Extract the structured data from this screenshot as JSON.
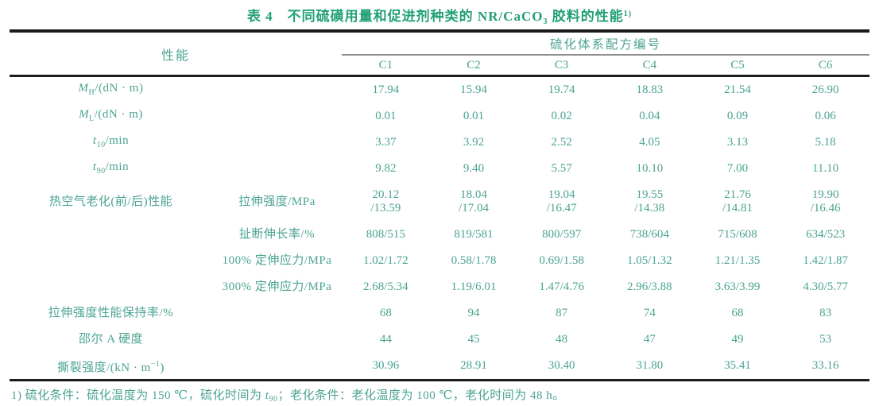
{
  "colors": {
    "text": "#4aa392",
    "title": "#21a173",
    "rule": "#1b1b1b",
    "subrule": "#8f8f8f",
    "background": "#ffffff"
  },
  "title": {
    "segments": [
      {
        "t": "表 4　不同硫磺用量和促进剂种类的 NR/CaCO",
        "s": "n"
      },
      {
        "t": "3",
        "s": "sub"
      },
      {
        "t": " 胶料的性能",
        "s": "n"
      },
      {
        "t": "1)",
        "s": "sup"
      }
    ]
  },
  "table": {
    "header": {
      "property": "性能",
      "group": "硫化体系配方编号",
      "columns": [
        "C1",
        "C2",
        "C3",
        "C4",
        "C5",
        "C6"
      ]
    },
    "rows": [
      {
        "group": "",
        "cell": "A",
        "label": [
          {
            "t": "M",
            "s": "i"
          },
          {
            "t": "H",
            "s": "sub"
          },
          {
            "t": "/(dN · m)",
            "s": "n"
          }
        ],
        "values": [
          "17.94",
          "15.94",
          "19.74",
          "18.83",
          "21.54",
          "26.90"
        ]
      },
      {
        "group": "",
        "cell": "A",
        "label": [
          {
            "t": "M",
            "s": "i"
          },
          {
            "t": "L",
            "s": "sub"
          },
          {
            "t": "/(dN · m)",
            "s": "n"
          }
        ],
        "values": [
          "0.01",
          "0.01",
          "0.02",
          "0.04",
          "0.09",
          "0.06"
        ]
      },
      {
        "group": "",
        "cell": "A",
        "label": [
          {
            "t": "t",
            "s": "i"
          },
          {
            "t": "10",
            "s": "sub"
          },
          {
            "t": "/min",
            "s": "n"
          }
        ],
        "values": [
          "3.37",
          "3.92",
          "2.52",
          "4.05",
          "3.13",
          "5.18"
        ]
      },
      {
        "group": "",
        "cell": "A",
        "label": [
          {
            "t": "t",
            "s": "i"
          },
          {
            "t": "90",
            "s": "sub"
          },
          {
            "t": "/min",
            "s": "n"
          }
        ],
        "values": [
          "9.82",
          "9.40",
          "5.57",
          "10.10",
          "7.00",
          "11.10"
        ]
      },
      {
        "group": "热空气老化(前/后)性能",
        "cell": "B",
        "label": [
          {
            "t": "拉伸强度/MPa",
            "s": "n"
          }
        ],
        "values": [
          "20.12\n/13.59",
          "18.04\n/17.04",
          "19.04\n/16.47",
          "19.55\n/14.38",
          "21.76\n/14.81",
          "19.90\n/16.46"
        ]
      },
      {
        "group": "",
        "cell": "B",
        "label": [
          {
            "t": "扯断伸长率/%",
            "s": "n"
          }
        ],
        "values": [
          "808/515",
          "819/581",
          "800/597",
          "738/604",
          "715/608",
          "634/523"
        ]
      },
      {
        "group": "",
        "cell": "B",
        "label": [
          {
            "t": "100% 定伸应力/MPa",
            "s": "n"
          }
        ],
        "values": [
          "1.02/1.72",
          "0.58/1.78",
          "0.69/1.58",
          "1.05/1.32",
          "1.21/1.35",
          "1.42/1.87"
        ]
      },
      {
        "group": "",
        "cell": "B",
        "label": [
          {
            "t": "300% 定伸应力/MPa",
            "s": "n"
          }
        ],
        "values": [
          "2.68/5.34",
          "1.19/6.01",
          "1.47/4.76",
          "2.96/3.88",
          "3.63/3.99",
          "4.30/5.77"
        ]
      },
      {
        "group": "",
        "cell": "A",
        "label": [
          {
            "t": "拉伸强度性能保持率/%",
            "s": "n"
          }
        ],
        "values": [
          "68",
          "94",
          "87",
          "74",
          "68",
          "83"
        ]
      },
      {
        "group": "",
        "cell": "A",
        "label": [
          {
            "t": "邵尔 A 硬度",
            "s": "n"
          }
        ],
        "values": [
          "44",
          "45",
          "48",
          "47",
          "49",
          "53"
        ]
      },
      {
        "group": "",
        "cell": "A",
        "label": [
          {
            "t": "撕裂强度/(kN · m",
            "s": "n"
          },
          {
            "t": "−1",
            "s": "sup"
          },
          {
            "t": ")",
            "s": "n"
          }
        ],
        "values": [
          "30.96",
          "28.91",
          "30.40",
          "31.80",
          "35.41",
          "33.16"
        ]
      }
    ]
  },
  "footnote": {
    "segments": [
      {
        "t": "1) 硫化条件：硫化温度为 150 ℃，硫化时间为 ",
        "s": "n"
      },
      {
        "t": "t",
        "s": "i"
      },
      {
        "t": "90",
        "s": "sub"
      },
      {
        "t": "；老化条件：老化温度为 100 ℃，老化时间为 48 h。",
        "s": "n"
      }
    ]
  }
}
